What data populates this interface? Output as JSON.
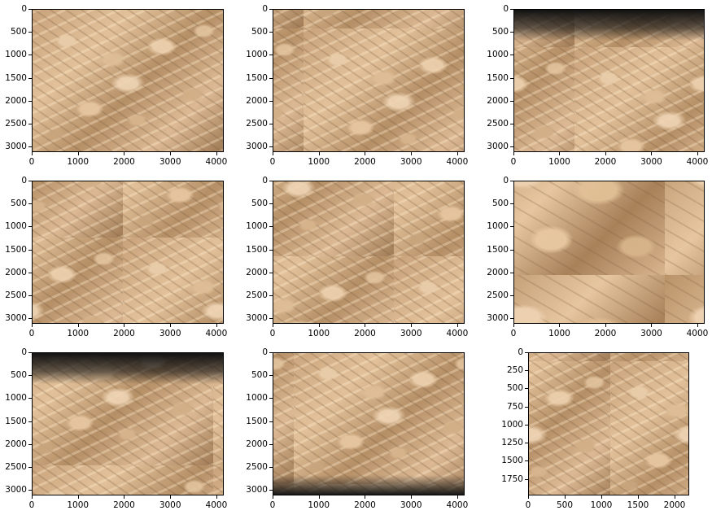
{
  "figure": {
    "panels": [
      {
        "id": "p1",
        "texture": "normal",
        "x_ticks": [
          "0",
          "1000",
          "2000",
          "3000",
          "4000"
        ],
        "y_ticks": [
          "0",
          "500",
          "1000",
          "1500",
          "2000",
          "2500",
          "3000"
        ],
        "x_max": 4160,
        "y_max": 3120
      },
      {
        "id": "p2",
        "texture": "normal",
        "x_ticks": [
          "0",
          "1000",
          "2000",
          "3000",
          "4000"
        ],
        "y_ticks": [
          "0",
          "500",
          "1000",
          "1500",
          "2000",
          "2500",
          "3000"
        ],
        "x_max": 4160,
        "y_max": 3120
      },
      {
        "id": "p3",
        "texture": "dark-top",
        "x_ticks": [
          "0",
          "1000",
          "2000",
          "3000",
          "4000"
        ],
        "y_ticks": [
          "0",
          "500",
          "1000",
          "1500",
          "2000",
          "2500",
          "3000"
        ],
        "x_max": 4160,
        "y_max": 3120
      },
      {
        "id": "p4",
        "texture": "normal",
        "x_ticks": [
          "0",
          "1000",
          "2000",
          "3000",
          "4000"
        ],
        "y_ticks": [
          "0",
          "500",
          "1000",
          "1500",
          "2000",
          "2500",
          "3000"
        ],
        "x_max": 4160,
        "y_max": 3120
      },
      {
        "id": "p5",
        "texture": "normal",
        "x_ticks": [
          "0",
          "1000",
          "2000",
          "3000",
          "4000"
        ],
        "y_ticks": [
          "0",
          "500",
          "1000",
          "1500",
          "2000",
          "2500",
          "3000"
        ],
        "x_max": 4160,
        "y_max": 3120
      },
      {
        "id": "p6",
        "texture": "big",
        "x_ticks": [
          "0",
          "1000",
          "2000",
          "3000",
          "4000"
        ],
        "y_ticks": [
          "0",
          "500",
          "1000",
          "1500",
          "2000",
          "2500",
          "3000"
        ],
        "x_max": 4160,
        "y_max": 3120
      },
      {
        "id": "p7",
        "texture": "dark-top",
        "x_ticks": [
          "0",
          "1000",
          "2000",
          "3000",
          "4000"
        ],
        "y_ticks": [
          "0",
          "500",
          "1000",
          "1500",
          "2000",
          "2500",
          "3000"
        ],
        "x_max": 4160,
        "y_max": 3120
      },
      {
        "id": "p8",
        "texture": "dark-bottom",
        "x_ticks": [
          "0",
          "1000",
          "2000",
          "3000",
          "4000"
        ],
        "y_ticks": [
          "0",
          "500",
          "1000",
          "1500",
          "2000",
          "2500",
          "3000"
        ],
        "x_max": 4160,
        "y_max": 3120
      },
      {
        "id": "p9",
        "texture": "normal",
        "x_ticks": [
          "0",
          "500",
          "1000",
          "1500",
          "2000"
        ],
        "y_ticks": [
          "0",
          "250",
          "500",
          "750",
          "1000",
          "1250",
          "1500",
          "1750"
        ],
        "x_max": 2200,
        "y_max": 1980
      }
    ]
  }
}
